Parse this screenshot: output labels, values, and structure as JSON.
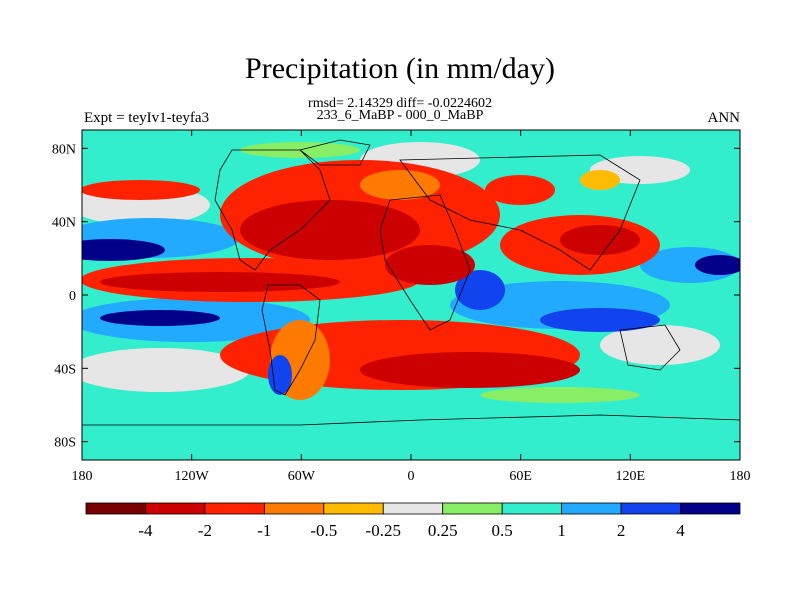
{
  "title": "Precipitation (in mm/day)",
  "stats": "rmsd= 2.14329 diff= -0.0224602",
  "experiment_times": "233_6_MaBP - 000_0_MaBP",
  "left_label": "Expt = teyIv1-teyfa3",
  "right_label": "ANN",
  "map": {
    "lat_ticks": [
      "80N",
      "40N",
      "0",
      "40S",
      "80S"
    ],
    "lat_values": [
      80,
      40,
      0,
      -40,
      -80
    ],
    "lon_ticks": [
      "180",
      "120W",
      "60W",
      "0",
      "60E",
      "120E",
      "180"
    ],
    "lon_values": [
      -180,
      -120,
      -60,
      0,
      60,
      120,
      180
    ]
  },
  "colorbar": {
    "colors": [
      "#7a0000",
      "#cc0000",
      "#ff2200",
      "#ff7a00",
      "#ffbb00",
      "#e6e6e6",
      "#88ee66",
      "#33eecc",
      "#22aaff",
      "#1144ee",
      "#000088"
    ],
    "labels": [
      "-4",
      "-2",
      "-1",
      "-0.5",
      "-0.25",
      "0.25",
      "0.5",
      "1",
      "2",
      "4"
    ]
  }
}
